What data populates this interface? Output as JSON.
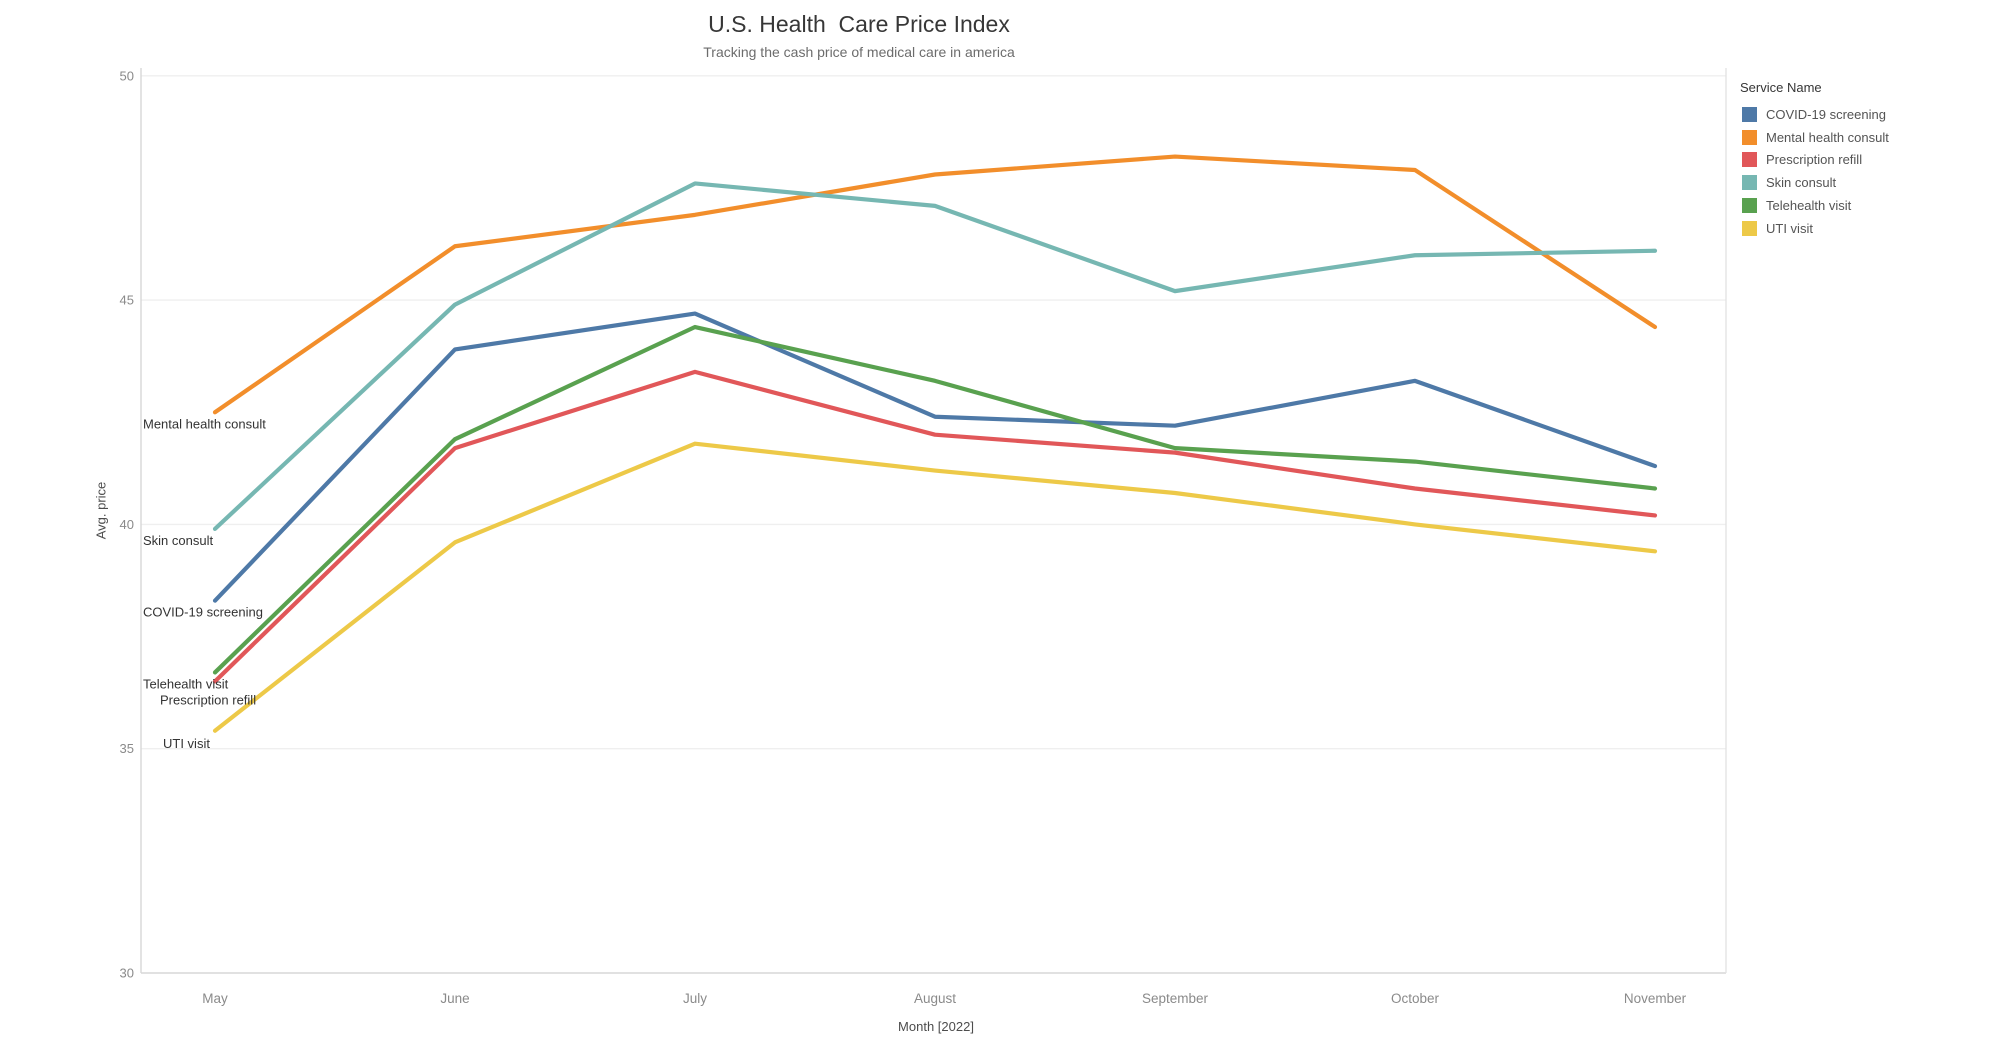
{
  "title": "U.S. Health  Care Price Index",
  "subtitle": "Tracking the cash price of medical care in america",
  "legend": {
    "title": "Service Name"
  },
  "chart_data": {
    "type": "line",
    "title": "U.S. Health  Care Price Index",
    "subtitle": "Tracking the cash price of medical care in america",
    "x": [
      "May",
      "June",
      "July",
      "August",
      "September",
      "October",
      "November"
    ],
    "xlabel": "Month [2022]",
    "ylabel": "Avg. price",
    "yticks": [
      30,
      35,
      40,
      45,
      50
    ],
    "ylim": [
      30,
      50.2
    ],
    "grid": true,
    "legend_position": "right",
    "legend_title": "Service Name",
    "series_start_labels": true,
    "series": [
      {
        "name": "COVID-19 screening",
        "color": "#4e79a7",
        "values": [
          38.3,
          43.9,
          44.7,
          42.4,
          42.2,
          43.2,
          41.3
        ]
      },
      {
        "name": "Mental health consult",
        "color": "#f28e2b",
        "values": [
          42.5,
          46.2,
          46.9,
          47.8,
          48.2,
          47.9,
          44.4
        ]
      },
      {
        "name": "Prescription refill",
        "color": "#e15759",
        "values": [
          36.5,
          41.7,
          43.4,
          42.0,
          41.6,
          40.8,
          40.2
        ]
      },
      {
        "name": "Skin consult",
        "color": "#76b7b2",
        "values": [
          39.9,
          44.9,
          47.6,
          47.1,
          45.2,
          46.0,
          46.1
        ]
      },
      {
        "name": "Telehealth visit",
        "color": "#59a14f",
        "values": [
          36.7,
          41.9,
          44.4,
          43.2,
          41.7,
          41.4,
          40.8
        ]
      },
      {
        "name": "UTI visit",
        "color": "#edc948",
        "values": [
          35.4,
          39.6,
          41.8,
          41.2,
          40.7,
          40.0,
          39.4
        ]
      }
    ]
  }
}
